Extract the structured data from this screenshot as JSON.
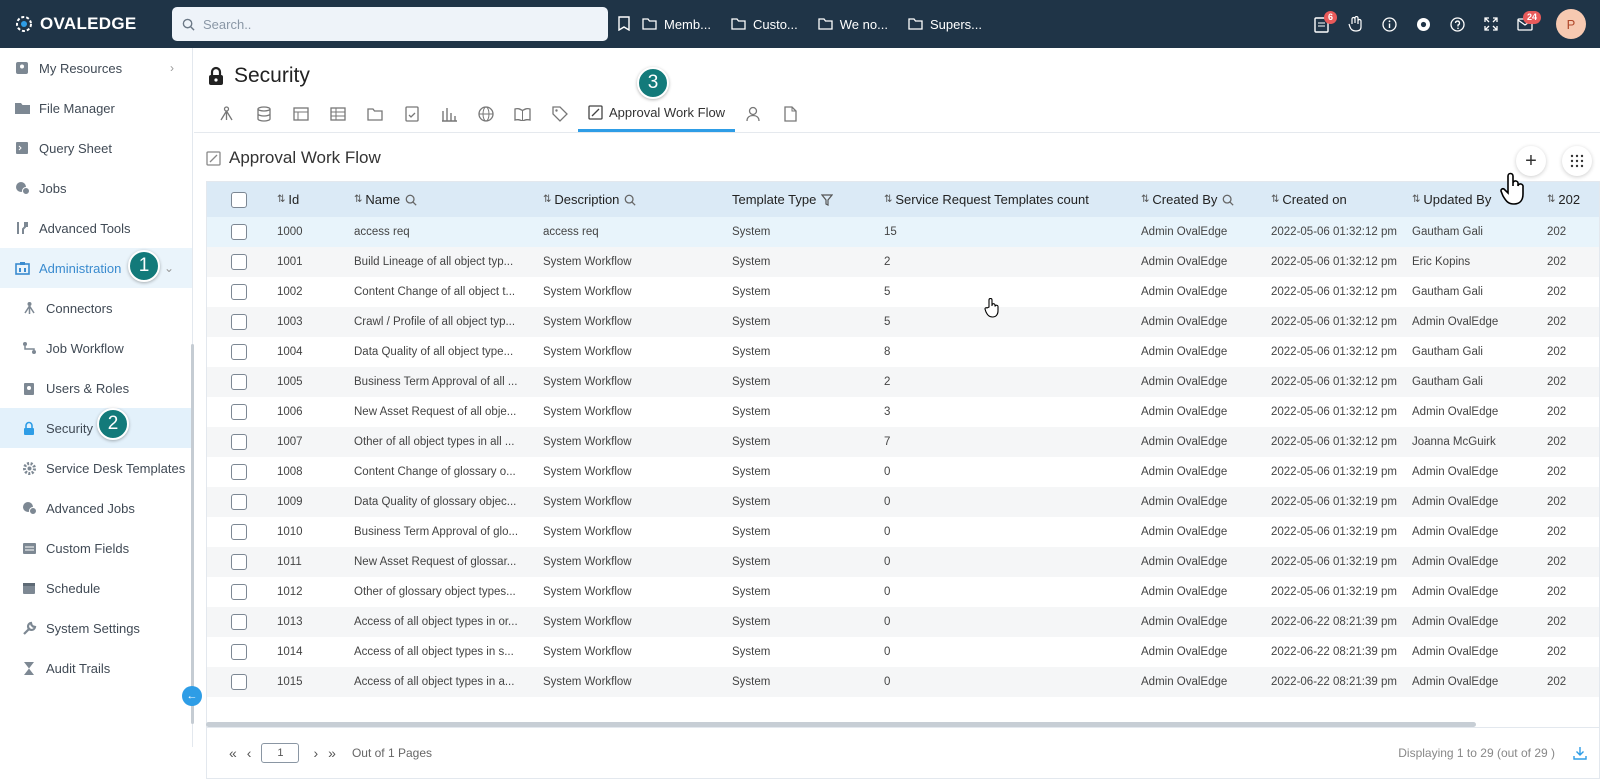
{
  "app": {
    "logo": "OVALEDGE"
  },
  "search": {
    "placeholder": "Search.."
  },
  "bookmarks": [
    "Memb...",
    "Custo...",
    "We no...",
    "Supers..."
  ],
  "top_icons": {
    "tasks_badge": "6",
    "mail_badge": "24",
    "avatar": "P"
  },
  "sidebar": {
    "items": [
      {
        "label": "My Resources",
        "icon": "resources-icon"
      },
      {
        "label": "File Manager",
        "icon": "folder-icon"
      },
      {
        "label": "Query Sheet",
        "icon": "query-icon"
      },
      {
        "label": "Jobs",
        "icon": "jobs-icon"
      },
      {
        "label": "Advanced Tools",
        "icon": "tools-icon"
      },
      {
        "label": "Administration",
        "icon": "admin-icon"
      },
      {
        "label": "Connectors",
        "icon": "connectors-icon"
      },
      {
        "label": "Job Workflow",
        "icon": "workflow-icon"
      },
      {
        "label": "Users & Roles",
        "icon": "users-icon"
      },
      {
        "label": "Security",
        "icon": "lock-icon"
      },
      {
        "label": "Service Desk Templates",
        "icon": "gear-icon"
      },
      {
        "label": "Advanced Jobs",
        "icon": "advanced-jobs-icon"
      },
      {
        "label": "Custom Fields",
        "icon": "custom-fields-icon"
      },
      {
        "label": "Schedule",
        "icon": "calendar-icon"
      },
      {
        "label": "System Settings",
        "icon": "wrench-icon"
      },
      {
        "label": "Audit Trails",
        "icon": "hourglass-icon"
      }
    ]
  },
  "steps": [
    "1",
    "2",
    "3"
  ],
  "page": {
    "title": "Security",
    "active_tab": "Approval Work Flow",
    "section_title": "Approval Work Flow"
  },
  "table": {
    "columns": [
      "Id",
      "Name",
      "Description",
      "Template Type",
      "Service Request Templates count",
      "Created By",
      "Created on",
      "Updated By",
      "202"
    ],
    "rows": [
      [
        "1000",
        "access req",
        "access req",
        "System",
        "15",
        "Admin OvalEdge",
        "2022-05-06 01:32:12 pm",
        "Gautham Gali",
        "202"
      ],
      [
        "1001",
        "Build Lineage of all object typ...",
        "System Workflow",
        "System",
        "2",
        "Admin OvalEdge",
        "2022-05-06 01:32:12 pm",
        "Eric Kopins",
        "202"
      ],
      [
        "1002",
        "Content Change of all object t...",
        "System Workflow",
        "System",
        "5",
        "Admin OvalEdge",
        "2022-05-06 01:32:12 pm",
        "Gautham Gali",
        "202"
      ],
      [
        "1003",
        "Crawl / Profile of all object typ...",
        "System Workflow",
        "System",
        "5",
        "Admin OvalEdge",
        "2022-05-06 01:32:12 pm",
        "Admin OvalEdge",
        "202"
      ],
      [
        "1004",
        "Data Quality of all object type...",
        "System Workflow",
        "System",
        "8",
        "Admin OvalEdge",
        "2022-05-06 01:32:12 pm",
        "Gautham Gali",
        "202"
      ],
      [
        "1005",
        "Business Term Approval of all ...",
        "System Workflow",
        "System",
        "2",
        "Admin OvalEdge",
        "2022-05-06 01:32:12 pm",
        "Gautham Gali",
        "202"
      ],
      [
        "1006",
        "New Asset Request of all obje...",
        "System Workflow",
        "System",
        "3",
        "Admin OvalEdge",
        "2022-05-06 01:32:12 pm",
        "Admin OvalEdge",
        "202"
      ],
      [
        "1007",
        "Other of all object types in all ...",
        "System Workflow",
        "System",
        "7",
        "Admin OvalEdge",
        "2022-05-06 01:32:12 pm",
        "Joanna McGuirk",
        "202"
      ],
      [
        "1008",
        "Content Change of glossary o...",
        "System Workflow",
        "System",
        "0",
        "Admin OvalEdge",
        "2022-05-06 01:32:19 pm",
        "Admin OvalEdge",
        "202"
      ],
      [
        "1009",
        "Data Quality of glossary objec...",
        "System Workflow",
        "System",
        "0",
        "Admin OvalEdge",
        "2022-05-06 01:32:19 pm",
        "Admin OvalEdge",
        "202"
      ],
      [
        "1010",
        "Business Term Approval of glo...",
        "System Workflow",
        "System",
        "0",
        "Admin OvalEdge",
        "2022-05-06 01:32:19 pm",
        "Admin OvalEdge",
        "202"
      ],
      [
        "1011",
        "New Asset Request of glossar...",
        "System Workflow",
        "System",
        "0",
        "Admin OvalEdge",
        "2022-05-06 01:32:19 pm",
        "Admin OvalEdge",
        "202"
      ],
      [
        "1012",
        "Other of glossary object types...",
        "System Workflow",
        "System",
        "0",
        "Admin OvalEdge",
        "2022-05-06 01:32:19 pm",
        "Admin OvalEdge",
        "202"
      ],
      [
        "1013",
        "Access of all object types in or...",
        "System Workflow",
        "System",
        "0",
        "Admin OvalEdge",
        "2022-06-22 08:21:39 pm",
        "Admin OvalEdge",
        "202"
      ],
      [
        "1014",
        "Access of all object types in s...",
        "System Workflow",
        "System",
        "0",
        "Admin OvalEdge",
        "2022-06-22 08:21:39 pm",
        "Admin OvalEdge",
        "202"
      ],
      [
        "1015",
        "Access of all object types in a...",
        "System Workflow",
        "System",
        "0",
        "Admin OvalEdge",
        "2022-06-22 08:21:39 pm",
        "Admin OvalEdge",
        "202"
      ]
    ]
  },
  "pagination": {
    "page_value": "1",
    "out_of": "Out of 1 Pages",
    "displaying": "Displaying 1 to 29 (out of 29 )"
  },
  "colors": {
    "topbar": "#1f3447",
    "accent": "#2e9de6",
    "step": "#137a7a"
  }
}
